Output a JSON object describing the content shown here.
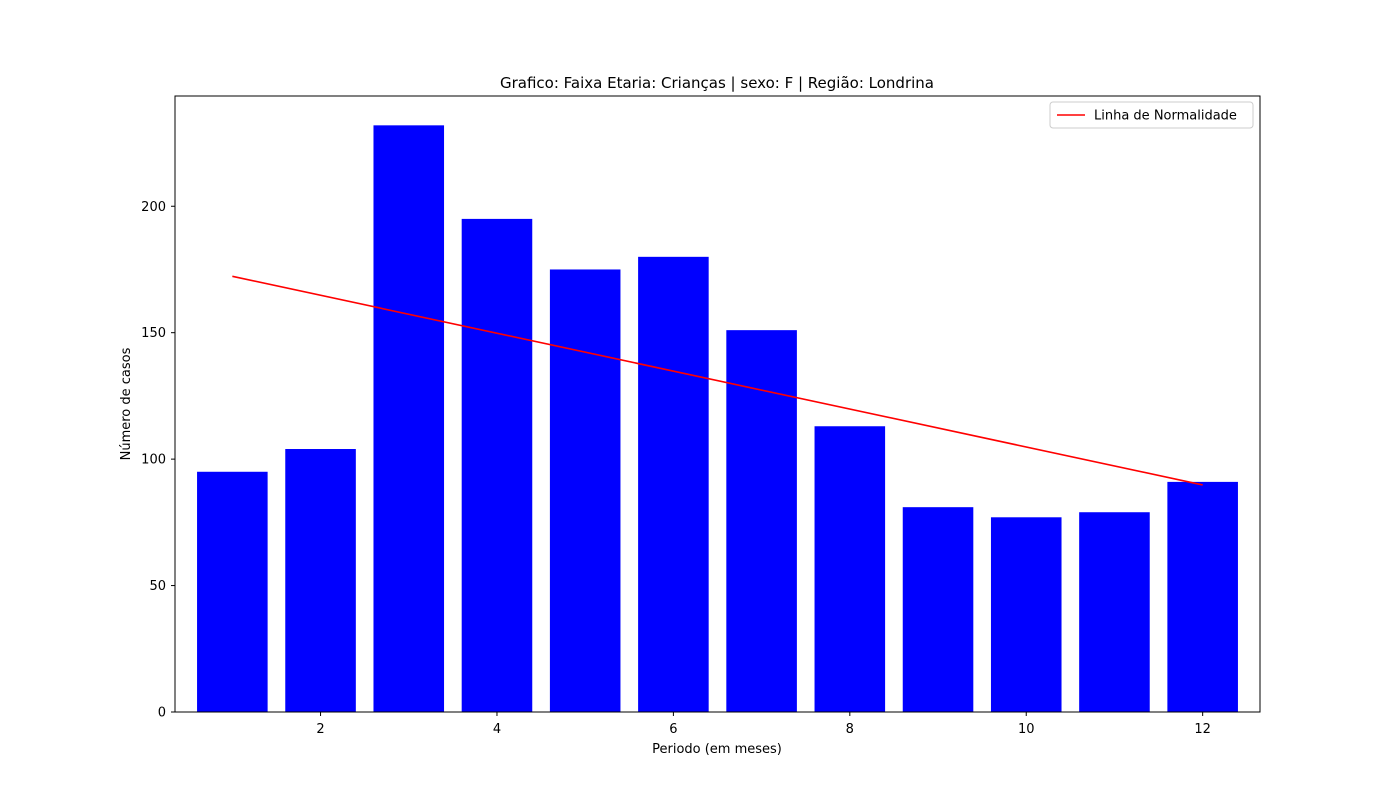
{
  "chart_data": {
    "type": "bar",
    "title": "Grafico: Faixa Etaria: Crianças | sexo: F | Região: Londrina",
    "xlabel": "Periodo (em meses)",
    "ylabel": "Número de casos",
    "x": [
      1,
      2,
      3,
      4,
      5,
      6,
      7,
      8,
      9,
      10,
      11,
      12
    ],
    "values": [
      95,
      104,
      232,
      195,
      175,
      180,
      151,
      113,
      81,
      77,
      79,
      91
    ],
    "bar_color": "#0000ff",
    "xlim": [
      0.35,
      12.65
    ],
    "ylim": [
      0,
      243.6
    ],
    "xticks": [
      2,
      4,
      6,
      8,
      10,
      12
    ],
    "yticks": [
      0,
      50,
      100,
      150,
      200
    ],
    "grid": false,
    "lines": [
      {
        "name": "Linha de Normalidade",
        "color": "#ff0000",
        "x": [
          1,
          12
        ],
        "y": [
          172.3,
          89.8
        ]
      }
    ],
    "legend": {
      "position": "top-right"
    }
  }
}
